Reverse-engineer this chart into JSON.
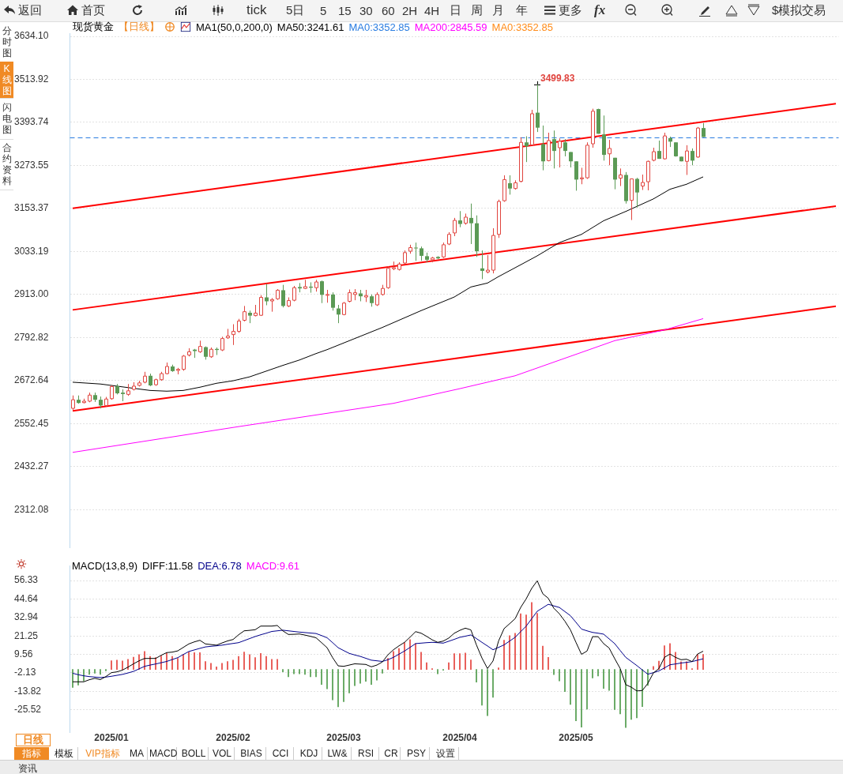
{
  "chart_data": [
    {
      "type": "other",
      "annotations": [
        "返回",
        "首页",
        "tick",
        "5日",
        "5",
        "15",
        "30",
        "60",
        "2H",
        "4H",
        "日",
        "周",
        "月",
        "年",
        "更多",
        "fx",
        "$模拟交易"
      ]
    },
    {
      "type": "other",
      "annotations": [
        "分时图",
        "K线图",
        "闪电图",
        "合约资料"
      ]
    },
    {
      "type": "candlestick",
      "title": "现货黄金",
      "subtitle": "【日线】",
      "legend_title": "MA1(50,0,200,0)",
      "legend": "top left",
      "grid": "y",
      "tick_labels": "y",
      "categories": [
        null,
        null,
        null,
        null,
        null,
        null,
        null,
        "2025/01",
        null,
        null,
        null,
        null,
        null,
        null,
        null,
        null,
        null,
        null,
        null,
        null,
        null,
        null,
        null,
        null,
        null,
        null,
        null,
        null,
        null,
        "2025/02",
        null,
        null,
        null,
        null,
        null,
        null,
        null,
        null,
        null,
        null,
        null,
        null,
        null,
        null,
        null,
        null,
        null,
        null,
        null,
        "2025/03",
        null,
        null,
        null,
        null,
        null,
        null,
        null,
        null,
        null,
        null,
        null,
        null,
        null,
        null,
        null,
        null,
        null,
        null,
        null,
        null,
        "2025/04",
        null,
        null,
        null,
        null,
        null,
        null,
        null,
        null,
        null,
        null,
        null,
        null,
        null,
        null,
        null,
        null,
        null,
        null,
        null,
        null,
        "2025/05",
        null,
        null,
        null,
        null,
        null,
        null,
        null,
        null,
        null,
        null,
        null,
        null,
        null,
        null,
        null,
        null,
        null,
        null,
        null,
        null,
        null,
        null,
        null,
        null,
        null,
        null,
        null,
        null,
        null,
        null,
        null,
        null,
        null,
        null,
        null,
        null,
        null,
        null,
        null,
        null,
        null,
        null,
        null,
        null,
        null,
        null,
        null
      ],
      "ohlc": [
        [
          2595,
          2631,
          2591,
          2619
        ],
        [
          2619,
          2631,
          2608,
          2610
        ],
        [
          2611,
          2622,
          2609,
          2615
        ],
        [
          2615,
          2639,
          2612,
          2632
        ],
        [
          2632,
          2639,
          2613,
          2619
        ],
        [
          2619,
          2628,
          2595,
          2603
        ],
        [
          2603,
          2627,
          2600,
          2621
        ],
        [
          2622,
          2659,
          2619,
          2656
        ],
        [
          2657,
          2663,
          2634,
          2637
        ],
        [
          2639,
          2648,
          2615,
          2635
        ],
        [
          2634,
          2663,
          2630,
          2644
        ],
        [
          2648,
          2668,
          2645,
          2657
        ],
        [
          2659,
          2672,
          2656,
          2666
        ],
        [
          2668,
          2697,
          2665,
          2685
        ],
        [
          2686,
          2692,
          2657,
          2659
        ],
        [
          2661,
          2678,
          2658,
          2675
        ],
        [
          2675,
          2697,
          2672,
          2692
        ],
        [
          2692,
          2723,
          2690,
          2712
        ],
        [
          2712,
          2717,
          2697,
          2699
        ],
        [
          2701,
          2708,
          2690,
          2704
        ],
        [
          2704,
          2744,
          2700,
          2741
        ],
        [
          2744,
          2763,
          2740,
          2753
        ],
        [
          2759,
          2761,
          2736,
          2755
        ],
        [
          2753,
          2784,
          2750,
          2768
        ],
        [
          2766,
          2768,
          2731,
          2739
        ],
        [
          2739,
          2765,
          2736,
          2760
        ],
        [
          2761,
          2765,
          2744,
          2758
        ],
        [
          2758,
          2795,
          2755,
          2790
        ],
        [
          2792,
          2817,
          2789,
          2797
        ],
        [
          2801,
          2830,
          2772,
          2810
        ],
        [
          2810,
          2845,
          2806,
          2839
        ],
        [
          2841,
          2881,
          2838,
          2865
        ],
        [
          2862,
          2868,
          2833,
          2854
        ],
        [
          2854,
          2884,
          2852,
          2861
        ],
        [
          2855,
          2911,
          2853,
          2905
        ],
        [
          2905,
          2943,
          2883,
          2894
        ],
        [
          2895,
          2903,
          2865,
          2899
        ],
        [
          2901,
          2928,
          2898,
          2925
        ],
        [
          2925,
          2940,
          2877,
          2881
        ],
        [
          2881,
          2905,
          2878,
          2896
        ],
        [
          2897,
          2937,
          2894,
          2932
        ],
        [
          2934,
          2945,
          2919,
          2930
        ],
        [
          2930,
          2954,
          2928,
          2935
        ],
        [
          2935,
          2947,
          2918,
          2932
        ],
        [
          2932,
          2954,
          2921,
          2948
        ],
        [
          2950,
          2952,
          2889,
          2912
        ],
        [
          2911,
          2926,
          2890,
          2913
        ],
        [
          2913,
          2919,
          2868,
          2876
        ],
        [
          2874,
          2884,
          2833,
          2857
        ],
        [
          2857,
          2892,
          2855,
          2889
        ],
        [
          2894,
          2927,
          2891,
          2918
        ],
        [
          2913,
          2928,
          2897,
          2918
        ],
        [
          2916,
          2926,
          2894,
          2908
        ],
        [
          2906,
          2926,
          2892,
          2910
        ],
        [
          2908,
          2913,
          2879,
          2889
        ],
        [
          2884,
          2919,
          2881,
          2913
        ],
        [
          2913,
          2940,
          2910,
          2930
        ],
        [
          2932,
          2992,
          2929,
          2986
        ],
        [
          2985,
          3005,
          2981,
          2988
        ],
        [
          2983,
          3003,
          2980,
          2998
        ],
        [
          3001,
          3036,
          2998,
          3030
        ],
        [
          3034,
          3052,
          3027,
          3044
        ],
        [
          3044,
          3058,
          3007,
          3043
        ],
        [
          3042,
          3047,
          3007,
          3021
        ],
        [
          3020,
          3030,
          3003,
          3010
        ],
        [
          3010,
          3018,
          3003,
          3015
        ],
        [
          3018,
          3020,
          3012,
          3014
        ],
        [
          3018,
          3058,
          3015,
          3052
        ],
        [
          3054,
          3087,
          3051,
          3081
        ],
        [
          3085,
          3127,
          3076,
          3120
        ],
        [
          3120,
          3146,
          3101,
          3110
        ],
        [
          3112,
          3139,
          3108,
          3129
        ],
        [
          3127,
          3167,
          3054,
          3112
        ],
        [
          3112,
          3134,
          3018,
          3034
        ],
        [
          2986,
          3036,
          2956,
          2979
        ],
        [
          2976,
          3023,
          2972,
          2981
        ],
        [
          2981,
          3098,
          2972,
          3078
        ],
        [
          3081,
          3178,
          3071,
          3173
        ],
        [
          3175,
          3246,
          3172,
          3234
        ],
        [
          3224,
          3246,
          3192,
          3209
        ],
        [
          3209,
          3232,
          3206,
          3225
        ],
        [
          3229,
          3352,
          3226,
          3338
        ],
        [
          3338,
          3355,
          3283,
          3327
        ],
        [
          3331,
          3429,
          3331,
          3418
        ],
        [
          3421,
          3499.83,
          3367,
          3379
        ],
        [
          3333,
          3385,
          3260,
          3285
        ],
        [
          3287,
          3365,
          3285,
          3343
        ],
        [
          3347,
          3371,
          3265,
          3314
        ],
        [
          3323,
          3349,
          3268,
          3341
        ],
        [
          3338,
          3347,
          3299,
          3314
        ],
        [
          3311,
          3311,
          3268,
          3285
        ],
        [
          3285,
          3285,
          3203,
          3234
        ],
        [
          3236,
          3267,
          3221,
          3239
        ],
        [
          3239,
          3338,
          3236,
          3330
        ],
        [
          3334,
          3432,
          3323,
          3425
        ],
        [
          3431,
          3432,
          3362,
          3362
        ],
        [
          3360,
          3413,
          3287,
          3303
        ],
        [
          3306,
          3345,
          3274,
          3321
        ],
        [
          3295,
          3295,
          3207,
          3234
        ],
        [
          3238,
          3265,
          3216,
          3247
        ],
        [
          3247,
          3255,
          3167,
          3174
        ],
        [
          3176,
          3237,
          3121,
          3236
        ],
        [
          3236,
          3239,
          3156,
          3198
        ],
        [
          3216,
          3248,
          3205,
          3226
        ],
        [
          3228,
          3287,
          3204,
          3285
        ],
        [
          3288,
          3323,
          3285,
          3312
        ],
        [
          3314,
          3343,
          3292,
          3292
        ],
        [
          3292,
          3365,
          3290,
          3356
        ],
        [
          3350,
          3354,
          3325,
          3340
        ],
        [
          3338,
          3338,
          3298,
          3299
        ],
        [
          3298,
          3298,
          3285,
          3285
        ],
        [
          3285,
          3330,
          3247,
          3314
        ],
        [
          3314,
          3321,
          3274,
          3287
        ],
        [
          3297,
          3381,
          3295,
          3378
        ],
        [
          3378,
          3392,
          3352.85,
          3352.85
        ],
        null,
        null,
        null,
        null,
        null,
        null,
        null,
        null,
        null,
        null,
        null,
        null,
        null,
        null,
        null,
        null,
        null,
        null,
        null,
        null,
        null,
        null,
        null,
        null
      ],
      "series": [
        {
          "type": "line",
          "name": "MA50:3241.61",
          "color": "#000000",
          "values": [
            2668,
            null,
            null,
            null,
            null,
            2663,
            null,
            null,
            2657,
            null,
            null,
            2651,
            null,
            null,
            2645,
            null,
            null,
            2643,
            null,
            null,
            2645,
            null,
            null,
            2654,
            null,
            null,
            2665,
            null,
            null,
            2672,
            null,
            null,
            2683,
            null,
            null,
            2699,
            null,
            null,
            2715,
            null,
            null,
            2730,
            null,
            null,
            2748,
            null,
            2759,
            null,
            null,
            null,
            null,
            2790,
            null,
            null,
            null,
            null,
            2821,
            null,
            null,
            null,
            null,
            null,
            null,
            2868,
            null,
            null,
            null,
            null,
            null,
            2906,
            null,
            null,
            2934,
            null,
            null,
            2945,
            null,
            2963,
            null,
            null,
            null,
            2996,
            null,
            null,
            3021,
            null,
            null,
            null,
            3058,
            null,
            null,
            null,
            3081,
            null,
            null,
            null,
            3119,
            null,
            null,
            null,
            3145,
            null,
            3159,
            null,
            null,
            3180,
            null,
            null,
            3207,
            null,
            null,
            3221,
            null,
            null,
            3241.61,
            null,
            null,
            null,
            null,
            null,
            null,
            null,
            null,
            null,
            null,
            null,
            null,
            null,
            null,
            null,
            null,
            null,
            null,
            null,
            null,
            null,
            null,
            null,
            null
          ]
        },
        {
          "type": "line",
          "name": "MA200:2845.59",
          "color": "#ff00ff",
          "values": [
            2472,
            null,
            null,
            null,
            null,
            null,
            null,
            null,
            null,
            null,
            null,
            null,
            null,
            null,
            null,
            2508,
            null,
            null,
            null,
            null,
            null,
            null,
            null,
            null,
            null,
            null,
            null,
            null,
            null,
            null,
            2544,
            null,
            null,
            null,
            null,
            null,
            null,
            null,
            null,
            null,
            null,
            null,
            null,
            null,
            null,
            null,
            null,
            null,
            null,
            null,
            null,
            null,
            null,
            null,
            null,
            null,
            null,
            null,
            2609,
            null,
            null,
            null,
            null,
            null,
            null,
            null,
            null,
            null,
            null,
            null,
            2650,
            null,
            null,
            null,
            null,
            null,
            null,
            null,
            null,
            null,
            2686,
            null,
            null,
            null,
            null,
            null,
            null,
            null,
            null,
            null,
            null,
            null,
            null,
            null,
            null,
            null,
            null,
            null,
            2784,
            null,
            null,
            null,
            null,
            null,
            null,
            null,
            null,
            2814,
            null,
            null,
            null,
            null,
            null,
            null,
            2845.59,
            null,
            null,
            null,
            null,
            null,
            null,
            null,
            null,
            null,
            null,
            null,
            null,
            null,
            null,
            null,
            null,
            null,
            null,
            null,
            null,
            null,
            null,
            null,
            null
          ]
        },
        {
          "type": "line",
          "color": "#ff0000",
          "values": [
            3154,
            null,
            null,
            null,
            null,
            null,
            null,
            null,
            null,
            null,
            null,
            null,
            null,
            null,
            null,
            null,
            null,
            null,
            null,
            null,
            null,
            null,
            null,
            null,
            null,
            null,
            null,
            null,
            null,
            null,
            null,
            null,
            null,
            null,
            null,
            null,
            null,
            null,
            null,
            null,
            null,
            null,
            null,
            null,
            null,
            null,
            null,
            null,
            null,
            null,
            null,
            null,
            null,
            null,
            null,
            null,
            null,
            null,
            null,
            null,
            null,
            null,
            null,
            null,
            null,
            null,
            null,
            null,
            null,
            null,
            null,
            null,
            null,
            null,
            null,
            null,
            null,
            null,
            null,
            null,
            null,
            null,
            null,
            null,
            null,
            null,
            null,
            null,
            null,
            null,
            null,
            null,
            null,
            null,
            null,
            null,
            null,
            null,
            null,
            null,
            null,
            null,
            null,
            null,
            null,
            null,
            null,
            null,
            null,
            null,
            null,
            null,
            null,
            null,
            null,
            null,
            null,
            null,
            null,
            null,
            null,
            null,
            null,
            null,
            null,
            null,
            null,
            null,
            null,
            null,
            null,
            null,
            null,
            null,
            null,
            null,
            null,
            null,
            3446
          ]
        },
        {
          "type": "line",
          "color": "#ff0000",
          "values": [
            2870,
            null,
            null,
            null,
            null,
            null,
            null,
            null,
            null,
            null,
            null,
            null,
            null,
            null,
            null,
            null,
            null,
            null,
            null,
            null,
            null,
            null,
            null,
            null,
            null,
            null,
            null,
            null,
            null,
            null,
            null,
            null,
            null,
            null,
            null,
            null,
            null,
            null,
            null,
            null,
            null,
            null,
            null,
            null,
            null,
            null,
            null,
            null,
            null,
            null,
            null,
            null,
            null,
            null,
            null,
            null,
            null,
            null,
            null,
            null,
            null,
            null,
            null,
            null,
            null,
            null,
            null,
            null,
            null,
            null,
            null,
            null,
            null,
            null,
            null,
            null,
            null,
            null,
            null,
            null,
            null,
            null,
            null,
            null,
            null,
            null,
            null,
            null,
            null,
            null,
            null,
            null,
            null,
            null,
            null,
            null,
            null,
            null,
            null,
            null,
            null,
            null,
            null,
            null,
            null,
            null,
            null,
            null,
            null,
            null,
            null,
            null,
            null,
            null,
            null,
            null,
            null,
            null,
            null,
            null,
            null,
            null,
            null,
            null,
            null,
            null,
            null,
            null,
            null,
            null,
            null,
            null,
            null,
            null,
            null,
            null,
            null,
            null,
            3160
          ]
        },
        {
          "type": "line",
          "color": "#ff0000",
          "values": [
            2588,
            null,
            null,
            null,
            null,
            null,
            null,
            null,
            null,
            null,
            null,
            null,
            null,
            null,
            null,
            null,
            null,
            null,
            null,
            null,
            null,
            null,
            null,
            null,
            null,
            null,
            null,
            null,
            null,
            null,
            null,
            null,
            null,
            null,
            null,
            null,
            null,
            null,
            null,
            null,
            null,
            null,
            null,
            null,
            null,
            null,
            null,
            null,
            null,
            null,
            null,
            null,
            null,
            null,
            null,
            null,
            null,
            null,
            null,
            null,
            null,
            null,
            null,
            null,
            null,
            null,
            null,
            null,
            null,
            null,
            null,
            null,
            null,
            null,
            null,
            null,
            null,
            null,
            null,
            null,
            null,
            null,
            null,
            null,
            null,
            null,
            null,
            null,
            null,
            null,
            null,
            null,
            null,
            null,
            null,
            null,
            null,
            null,
            null,
            null,
            null,
            null,
            null,
            null,
            null,
            null,
            null,
            null,
            null,
            null,
            null,
            null,
            null,
            null,
            null,
            null,
            null,
            null,
            null,
            null,
            null,
            null,
            null,
            null,
            null,
            null,
            null,
            null,
            null,
            null,
            null,
            null,
            null,
            null,
            null,
            null,
            null,
            null,
            2880
          ]
        }
      ],
      "ref_lines": [
        {
          "axis": "y",
          "value": 3352.85,
          "label": "MA0:3352.85",
          "color": "#2a7de1",
          "line_style": "dashed"
        }
      ],
      "annotations": [
        "3499.83",
        "MA0:3352.85"
      ],
      "ylim": [
        2205,
        3643
      ],
      "yticks": [
        {
          "value": 3634.1,
          "label": "3634.10"
        },
        3513.92,
        3393.74,
        3273.55,
        3153.37,
        3033.19,
        {
          "value": 2913,
          "label": "2913.00"
        },
        2792.82,
        2672.64,
        2552.45,
        2432.27,
        2312.08
      ]
    },
    {
      "type": "bar",
      "legend_title": "MACD(13,8,9)",
      "legend": "top left",
      "grid": "y",
      "categories": [
        null,
        null,
        null,
        null,
        null,
        null,
        null,
        "2025/01",
        null,
        null,
        null,
        null,
        null,
        null,
        null,
        null,
        null,
        null,
        null,
        null,
        null,
        null,
        null,
        null,
        null,
        null,
        null,
        null,
        null,
        "2025/02",
        null,
        null,
        null,
        null,
        null,
        null,
        null,
        null,
        null,
        null,
        null,
        null,
        null,
        null,
        null,
        null,
        null,
        null,
        null,
        "2025/03",
        null,
        null,
        null,
        null,
        null,
        null,
        null,
        null,
        null,
        null,
        null,
        null,
        null,
        null,
        null,
        null,
        null,
        null,
        null,
        null,
        "2025/04",
        null,
        null,
        null,
        null,
        null,
        null,
        null,
        null,
        null,
        null,
        null,
        null,
        null,
        null,
        null,
        null,
        null,
        null,
        null,
        null,
        "2025/05",
        null,
        null,
        null,
        null,
        null,
        null,
        null,
        null,
        null,
        null,
        null,
        null,
        null,
        null,
        null,
        null,
        null,
        null,
        null,
        null,
        null,
        null,
        null,
        null,
        null,
        null,
        null,
        null,
        null,
        null,
        null,
        null,
        null,
        null,
        null,
        null,
        null,
        null,
        null,
        null,
        null,
        null,
        null,
        null,
        null,
        null,
        null
      ],
      "series": [
        {
          "type": "bar",
          "color": "#e5413b",
          "values": [
            null,
            null,
            null,
            null,
            null,
            null,
            null,
            5.6,
            5.9,
            5.4,
            6.4,
            7.8,
            9.4,
            11.4,
            8.3,
            7.5,
            8.6,
            10.2,
            8.3,
            7.0,
            9.4,
            11.1,
            10.7,
            10.7,
            5.1,
            3.9,
            1.7,
            3.9,
            5.1,
            5.9,
            8.3,
            11.1,
            9.4,
            7.5,
            10.2,
            8.3,
            6.4,
            6.4,
            null,
            null,
            null,
            null,
            null,
            null,
            null,
            null,
            null,
            null,
            null,
            null,
            null,
            null,
            null,
            null,
            null,
            null,
            null,
            7.0,
            11.4,
            13.3,
            17.0,
            18.9,
            16.4,
            10.9,
            4.3,
            0.6,
            null,
            null,
            4.3,
            10.1,
            10.1,
            10.4,
            6.0,
            null,
            null,
            null,
            null,
            1.1,
            18.6,
            21.5,
            23.0,
            35.3,
            34.6,
            42.5,
            35.6,
            14.8,
            7.7,
            null,
            null,
            null,
            null,
            null,
            null,
            null,
            null,
            null,
            null,
            null,
            null,
            null,
            null,
            null,
            null,
            null,
            null,
            1.9,
            5.3,
            15.1,
            16.4,
            10.9,
            4.9,
            4.9,
            0.6,
            9.6,
            9.61,
            null,
            null,
            null,
            null,
            null,
            null,
            null,
            null,
            null,
            null,
            null,
            null,
            null,
            null,
            null,
            null,
            null,
            null,
            null,
            null,
            null,
            null,
            null,
            null
          ]
        },
        {
          "type": "bar",
          "color": "#4e9a49",
          "values": [
            -11.4,
            -9.9,
            -7.3,
            -3.1,
            -2.4,
            -3.1,
            -0.9,
            null,
            null,
            null,
            null,
            null,
            null,
            null,
            null,
            null,
            null,
            null,
            null,
            null,
            null,
            null,
            null,
            null,
            null,
            null,
            null,
            null,
            null,
            null,
            null,
            null,
            null,
            null,
            null,
            null,
            null,
            null,
            -1.5,
            -4.6,
            -2.8,
            -2.8,
            -3.1,
            -4.6,
            -4.6,
            -9.5,
            -12.2,
            -19.3,
            -23.6,
            -20.4,
            -14.9,
            -10.3,
            -8.8,
            -7.5,
            -9.5,
            -6.7,
            -2.4,
            null,
            null,
            null,
            null,
            null,
            null,
            null,
            null,
            null,
            -2.8,
            -0.5,
            null,
            null,
            null,
            null,
            null,
            -8.0,
            -22.7,
            -29.3,
            -17.7,
            null,
            null,
            null,
            null,
            null,
            null,
            null,
            null,
            null,
            null,
            -3.3,
            -7.3,
            -14.0,
            -22.2,
            -32.5,
            -36.5,
            -25.1,
            -5.4,
            -4.1,
            -12.0,
            -13.3,
            -25.4,
            -28.2,
            -36.8,
            -31.7,
            -30.6,
            -23.5,
            -10.1,
            null,
            null,
            null,
            null,
            null,
            null,
            null,
            null,
            null,
            null,
            null,
            null,
            null,
            null,
            null,
            null,
            null,
            null,
            null,
            null,
            null,
            null,
            null,
            null,
            null,
            null,
            null,
            null,
            null,
            null,
            null,
            null,
            null,
            null
          ]
        },
        {
          "type": "line",
          "name": "DIFF:11.58",
          "color": "#000000",
          "values": [
            -7.8,
            -7.8,
            -7.8,
            -6.5,
            -5.6,
            -6.4,
            -4.5,
            -2.0,
            -1.5,
            -0.4,
            1.5,
            3.6,
            5.5,
            7.0,
            7.0,
            7.0,
            9.0,
            10.7,
            11.0,
            11.8,
            14.0,
            16.2,
            17.5,
            18.5,
            16.2,
            15.8,
            15.4,
            16.8,
            18.1,
            19.0,
            22.0,
            24.5,
            24.8,
            25.2,
            27.5,
            27.5,
            27.5,
            27.9,
            24.5,
            22.2,
            22.3,
            22.5,
            21.8,
            21.0,
            20.1,
            17.0,
            13.8,
            7.5,
            2.3,
            2.0,
            2.8,
            3.6,
            3.4,
            3.2,
            1.7,
            2.8,
            4.8,
            9.3,
            12.5,
            15.0,
            17.2,
            20.5,
            24.0,
            23.0,
            21.0,
            18.8,
            17.2,
            18.0,
            19.9,
            23.0,
            24.8,
            26.2,
            25.1,
            15.6,
            7.3,
            0.6,
            5.4,
            18.0,
            25.9,
            29.0,
            32.2,
            39.3,
            44.8,
            51.4,
            56.2,
            48.0,
            45.1,
            38.8,
            35.3,
            30.6,
            25.1,
            17.2,
            9.6,
            11.7,
            20.8,
            20.8,
            16.4,
            13.6,
            6.9,
            0.6,
            -9.6,
            -11.2,
            -13.6,
            -13.3,
            -8.8,
            -2.2,
            0.6,
            7.7,
            9.8,
            7.7,
            6.2,
            6.5,
            5.0,
            9.8,
            11.58,
            null,
            null,
            null,
            null,
            null,
            null,
            null,
            null,
            null,
            null,
            null,
            null,
            null,
            null,
            null,
            null,
            null,
            null,
            null,
            null,
            null,
            null,
            null,
            null
          ]
        },
        {
          "type": "line",
          "name": "DEA:6.78",
          "color": "#00008b",
          "values": [
            -2.4,
            -3.3,
            -4.0,
            -4.5,
            -4.8,
            -5.1,
            -4.8,
            -4.3,
            -3.7,
            -3.1,
            -2.2,
            -1.2,
            0.4,
            2.0,
            2.8,
            3.5,
            4.3,
            5.1,
            6.3,
            7.5,
            9.5,
            11.4,
            12.4,
            13.4,
            14.3,
            14.7,
            15.0,
            15.4,
            16.0,
            16.5,
            17.0,
            18.3,
            19.6,
            20.9,
            22.0,
            23.0,
            24.1,
            24.5,
            24.9,
            24.5,
            24.1,
            23.7,
            23.4,
            23.1,
            22.8,
            21.5,
            20.1,
            17.0,
            13.8,
            12.0,
            10.2,
            9.2,
            8.3,
            7.1,
            5.9,
            5.5,
            5.1,
            6.2,
            7.7,
            9.7,
            11.7,
            14.0,
            16.4,
            16.7,
            17.0,
            17.2,
            17.0,
            16.7,
            17.9,
            19.1,
            20.4,
            21.1,
            21.9,
            19.6,
            17.2,
            14.9,
            12.5,
            14.0,
            15.6,
            18.0,
            20.4,
            24.0,
            27.5,
            32.2,
            36.9,
            39.1,
            41.3,
            40.3,
            39.3,
            36.7,
            34.1,
            29.9,
            25.6,
            24.5,
            23.5,
            23.0,
            22.4,
            19.4,
            16.4,
            12.0,
            7.7,
            5.1,
            2.5,
            -0.3,
            -3.0,
            -2.0,
            -0.9,
            1.0,
            3.0,
            3.5,
            4.1,
            4.5,
            5.0,
            5.9,
            6.78,
            null,
            null,
            null,
            null,
            null,
            null,
            null,
            null,
            null,
            null,
            null,
            null,
            null,
            null,
            null,
            null,
            null,
            null,
            null,
            null,
            null,
            null,
            null,
            null
          ]
        }
      ],
      "annotations": [
        "MACD:9.61"
      ],
      "ylim": [
        -39.7,
        65.8
      ],
      "yticks": [
        56.33,
        44.64,
        32.94,
        21.25,
        9.56,
        -2.13,
        -13.82,
        -25.52
      ]
    },
    {
      "type": "other",
      "annotations": [
        "日线",
        "指标",
        "模板",
        "VIP指标",
        "MA",
        "MACD",
        "BOLL",
        "VOL",
        "BIAS",
        "CCI",
        "KDJ",
        "LW&",
        "RSI",
        "CR",
        "PSY",
        "设置",
        "资讯"
      ]
    }
  ]
}
